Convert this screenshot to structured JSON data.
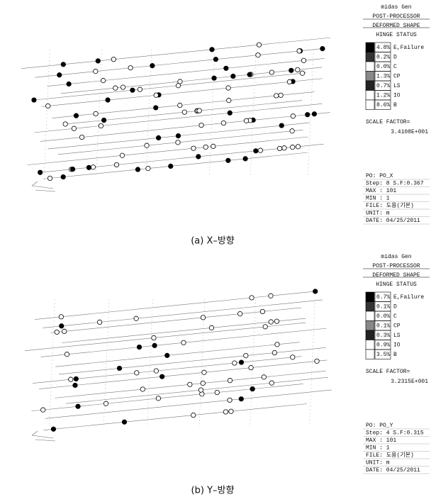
{
  "panels": [
    {
      "header": [
        "midas Gen",
        "POST-PROCESSOR",
        "DEFORMED SHAPE",
        "HINGE STATUS"
      ],
      "rows": [
        [
          "4.8%",
          "E,Failure"
        ],
        [
          "0.2%",
          "D"
        ],
        [
          "0.0%",
          "C"
        ],
        [
          "1.3%",
          "CP"
        ],
        [
          "0.7%",
          "LS"
        ],
        [
          "1.2%",
          "IO"
        ],
        [
          "8.6%",
          "B"
        ]
      ],
      "scale_label": "SCALE FACTOR=",
      "scale_value": "3.4108E+001",
      "info": [
        "PO: PO_X",
        "Step: 8 S.F:0.367",
        "MAX : 101",
        "MIN : 1",
        "FILE: 도용(기본)",
        "UNIT: m",
        "DATE: 04/25/2011"
      ],
      "caption": "(a) X–방향"
    },
    {
      "header": [
        "midas Gen",
        "POST-PROCESSOR",
        "DEFORMED SHAPE",
        "HINGE STATUS"
      ],
      "rows": [
        [
          "0.7%",
          "E,Failure"
        ],
        [
          "0.1%",
          "D"
        ],
        [
          "0.0%",
          "C"
        ],
        [
          "0.1%",
          "CP"
        ],
        [
          "0.3%",
          "LS"
        ],
        [
          "0.9%",
          "IO"
        ],
        [
          "3.5%",
          "B"
        ]
      ],
      "scale_label": "SCALE FACTOR=",
      "scale_value": "3.2315E+001",
      "info": [
        "PO: PO_Y",
        "Step: 4 S.F:0.315",
        "MAX : 101",
        "MIN : 1",
        "FILE: 도용(기본)",
        "UNIT: m",
        "DATE: 04/25/2011"
      ],
      "caption": "(b) Y–방향"
    }
  ]
}
